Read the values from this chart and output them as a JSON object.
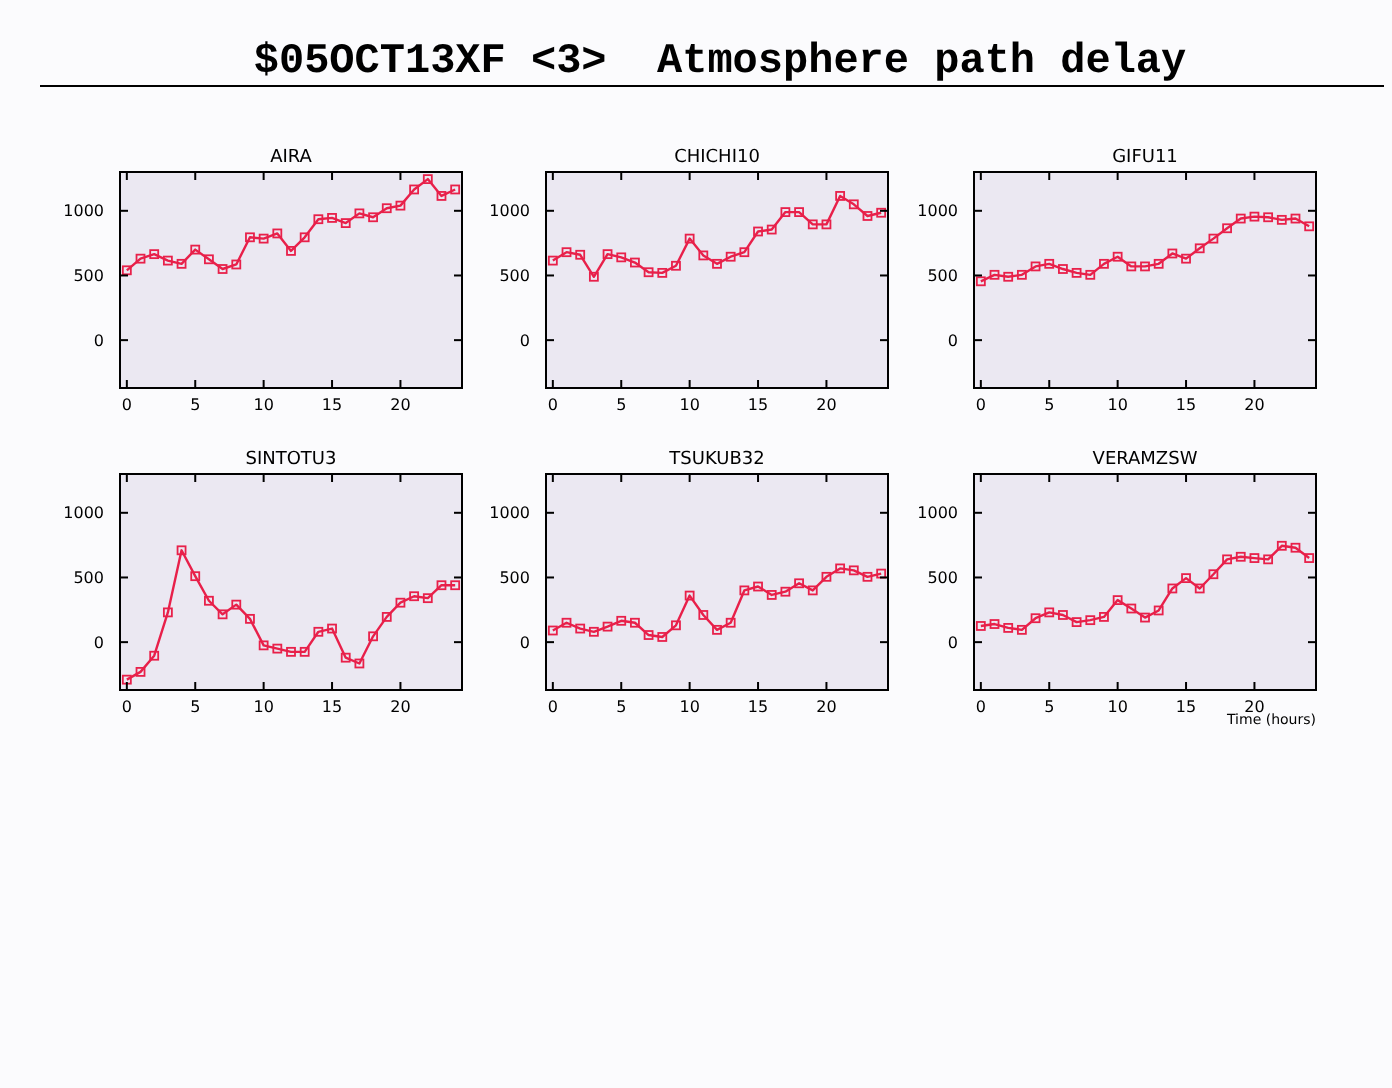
{
  "chart_data": [
    {
      "type": "line",
      "title": "AIRA",
      "annotations": [
        "$05OCT13XF <3>  Atmosphere path delay"
      ],
      "x": [
        0,
        1,
        2,
        3,
        4,
        5,
        6,
        7,
        8,
        9,
        10,
        11,
        12,
        13,
        14,
        15,
        16,
        17,
        18,
        19,
        20,
        21,
        22,
        23,
        24
      ],
      "series": [
        {
          "color": "#e8204a",
          "values": [
            540,
            630,
            665,
            615,
            590,
            700,
            625,
            550,
            585,
            795,
            785,
            825,
            690,
            795,
            935,
            945,
            905,
            980,
            950,
            1020,
            1040,
            1165,
            1245,
            1115,
            1165
          ]
        }
      ],
      "xlim": [
        -0.5,
        24.5
      ],
      "xticks": [
        0,
        5,
        10,
        15,
        20
      ],
      "ylim": [
        -370,
        1300
      ],
      "yticks": [
        0,
        500,
        1000
      ],
      "marker": "square",
      "grid": false
    },
    {
      "type": "line",
      "title": "CHICHI10",
      "x": [
        0,
        1,
        2,
        3,
        4,
        5,
        6,
        7,
        8,
        9,
        10,
        11,
        12,
        13,
        14,
        15,
        16,
        17,
        18,
        19,
        20,
        21,
        22,
        23,
        24
      ],
      "series": [
        {
          "color": "#e8204a",
          "values": [
            615,
            680,
            660,
            490,
            665,
            640,
            600,
            525,
            520,
            575,
            785,
            655,
            590,
            645,
            680,
            840,
            855,
            990,
            990,
            895,
            895,
            1115,
            1050,
            960,
            985
          ]
        }
      ],
      "xlim": [
        -0.5,
        24.5
      ],
      "xticks": [
        0,
        5,
        10,
        15,
        20
      ],
      "ylim": [
        -370,
        1300
      ],
      "yticks": [
        0,
        500,
        1000
      ],
      "marker": "square",
      "grid": false
    },
    {
      "type": "line",
      "title": "GIFU11",
      "x": [
        0,
        1,
        2,
        3,
        4,
        5,
        6,
        7,
        8,
        9,
        10,
        11,
        12,
        13,
        14,
        15,
        16,
        17,
        18,
        19,
        20,
        21,
        22,
        23,
        24
      ],
      "series": [
        {
          "color": "#e8204a",
          "values": [
            455,
            505,
            490,
            505,
            570,
            590,
            550,
            520,
            505,
            590,
            645,
            570,
            570,
            590,
            670,
            630,
            710,
            785,
            865,
            940,
            955,
            950,
            930,
            940,
            880
          ]
        }
      ],
      "xlim": [
        -0.5,
        24.5
      ],
      "xticks": [
        0,
        5,
        10,
        15,
        20
      ],
      "ylim": [
        -370,
        1300
      ],
      "yticks": [
        0,
        500,
        1000
      ],
      "marker": "square",
      "grid": false
    },
    {
      "type": "line",
      "title": "SINTOTU3",
      "x": [
        0,
        1,
        2,
        3,
        4,
        5,
        6,
        7,
        8,
        9,
        10,
        11,
        12,
        13,
        14,
        15,
        16,
        17,
        18,
        19,
        20,
        21,
        22,
        23,
        24
      ],
      "series": [
        {
          "color": "#e8204a",
          "values": [
            -290,
            -230,
            -105,
            230,
            710,
            510,
            320,
            215,
            290,
            180,
            -25,
            -50,
            -75,
            -75,
            80,
            105,
            -120,
            -165,
            45,
            195,
            305,
            355,
            340,
            440,
            440
          ]
        }
      ],
      "xlim": [
        -0.5,
        24.5
      ],
      "xticks": [
        0,
        5,
        10,
        15,
        20
      ],
      "ylim": [
        -370,
        1300
      ],
      "yticks": [
        0,
        500,
        1000
      ],
      "marker": "square",
      "grid": false
    },
    {
      "type": "line",
      "title": "TSUKUB32",
      "x": [
        0,
        1,
        2,
        3,
        4,
        5,
        6,
        7,
        8,
        9,
        10,
        11,
        12,
        13,
        14,
        15,
        16,
        17,
        18,
        19,
        20,
        21,
        22,
        23,
        24
      ],
      "series": [
        {
          "color": "#e8204a",
          "values": [
            90,
            150,
            105,
            80,
            120,
            165,
            150,
            55,
            40,
            130,
            360,
            210,
            95,
            150,
            400,
            430,
            365,
            390,
            455,
            400,
            505,
            570,
            555,
            505,
            530
          ]
        }
      ],
      "xlim": [
        -0.5,
        24.5
      ],
      "xticks": [
        0,
        5,
        10,
        15,
        20
      ],
      "ylim": [
        -370,
        1300
      ],
      "yticks": [
        0,
        500,
        1000
      ],
      "marker": "square",
      "grid": false
    },
    {
      "type": "line",
      "title": "VERAMZSW",
      "xlabel": "Time (hours)",
      "x": [
        0,
        1,
        2,
        3,
        4,
        5,
        6,
        7,
        8,
        9,
        10,
        11,
        12,
        13,
        14,
        15,
        16,
        17,
        18,
        19,
        20,
        21,
        22,
        23,
        24
      ],
      "series": [
        {
          "color": "#e8204a",
          "values": [
            125,
            140,
            110,
            95,
            185,
            230,
            210,
            155,
            170,
            195,
            325,
            260,
            190,
            245,
            415,
            495,
            415,
            525,
            640,
            660,
            650,
            640,
            745,
            730,
            650
          ]
        }
      ],
      "xlim": [
        -0.5,
        24.5
      ],
      "xticks": [
        0,
        5,
        10,
        15,
        20
      ],
      "ylim": [
        -370,
        1300
      ],
      "yticks": [
        0,
        500,
        1000
      ],
      "marker": "square",
      "grid": false
    }
  ]
}
